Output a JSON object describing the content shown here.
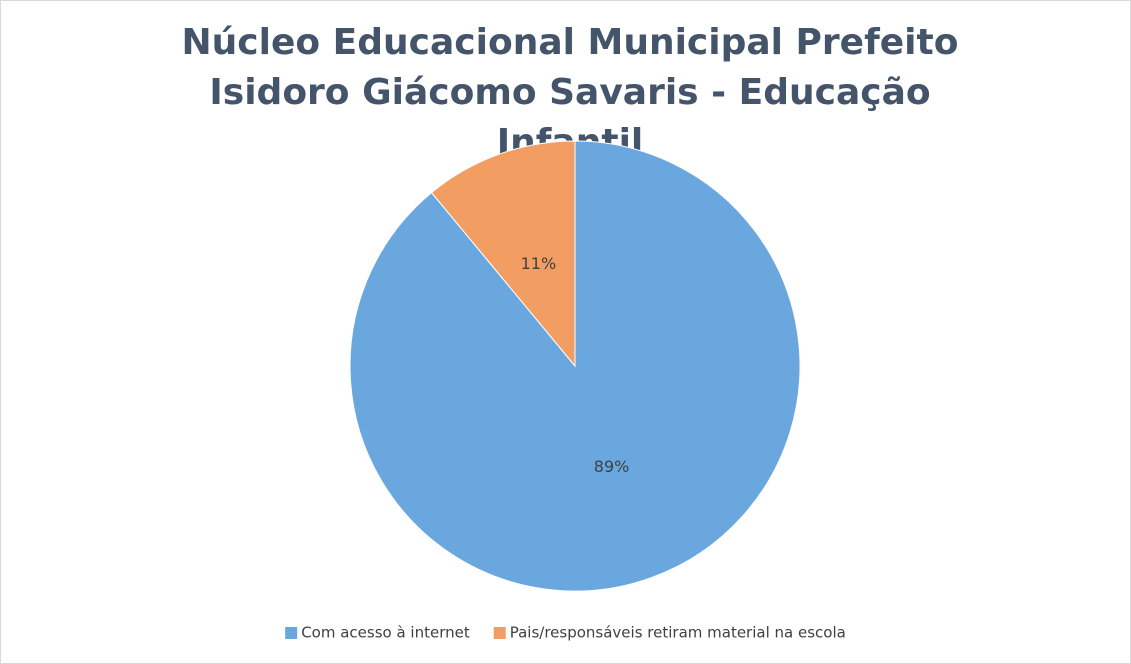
{
  "chart_data": {
    "type": "pie",
    "title": "Núcleo Educacional Municipal Prefeito Isidoro Giácomo Savaris - Educação Infantil",
    "categories": [
      "Com acesso à internet",
      "Pais/responsáveis retiram material na escola"
    ],
    "values": [
      89,
      11
    ],
    "value_labels": [
      "89%",
      "11%"
    ],
    "colors": [
      "#6aa7de",
      "#f29e62"
    ],
    "legend": "bottom"
  }
}
